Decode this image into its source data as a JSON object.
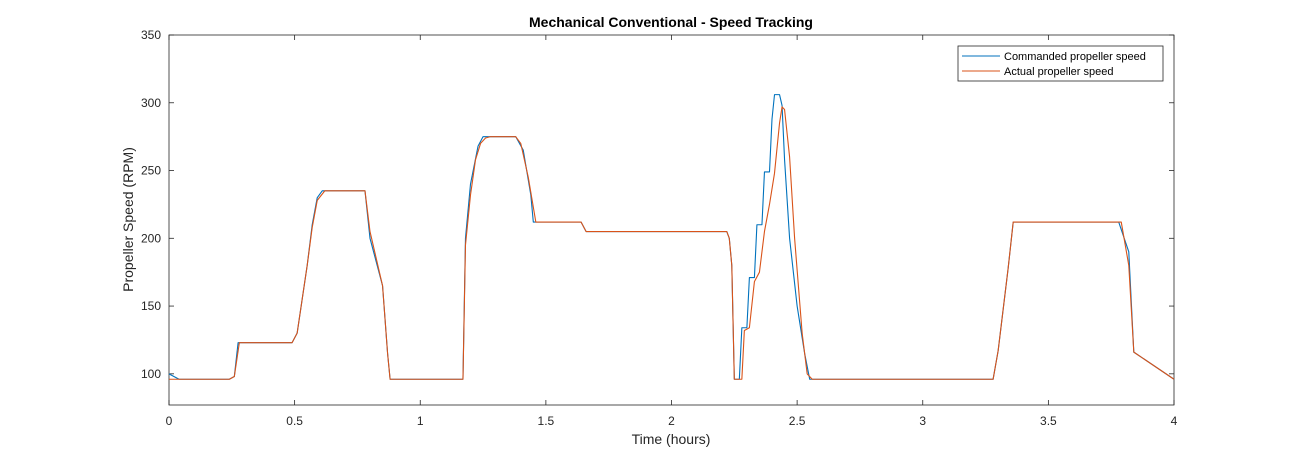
{
  "chart_data": {
    "type": "line",
    "title": "Mechanical Conventional - Speed Tracking",
    "xlabel": "Time (hours)",
    "ylabel": "Propeller Speed (RPM)",
    "xlim": [
      0,
      4
    ],
    "ylim": [
      77,
      350
    ],
    "xticks": [
      0,
      0.5,
      1,
      1.5,
      2,
      2.5,
      3,
      3.5,
      4
    ],
    "xtick_labels": [
      "0",
      "0.5",
      "1",
      "1.5",
      "2",
      "2.5",
      "3",
      "3.5",
      "4"
    ],
    "yticks": [
      100,
      150,
      200,
      250,
      300,
      350
    ],
    "ytick_labels": [
      "100",
      "150",
      "200",
      "250",
      "300",
      "350"
    ],
    "grid": false,
    "legend_position": "top-right",
    "series": [
      {
        "name": "Commanded propeller speed",
        "color": "#0072BD",
        "x": [
          0,
          0.04,
          0.24,
          0.26,
          0.275,
          0.49,
          0.51,
          0.55,
          0.57,
          0.59,
          0.61,
          0.63,
          0.78,
          0.8,
          0.85,
          0.87,
          0.88,
          1.17,
          1.18,
          1.2,
          1.23,
          1.25,
          1.38,
          1.41,
          1.44,
          1.45,
          1.64,
          1.66,
          2.22,
          2.23,
          2.24,
          2.25,
          2.27,
          2.28,
          2.3,
          2.31,
          2.33,
          2.34,
          2.36,
          2.37,
          2.39,
          2.4,
          2.41,
          2.42,
          2.43,
          2.44,
          2.45,
          2.47,
          2.5,
          2.53,
          2.55,
          2.56,
          3.28,
          3.3,
          3.34,
          3.36,
          3.77,
          3.78,
          3.82,
          3.84,
          4.0
        ],
        "y": [
          100,
          96,
          96,
          98,
          123,
          123,
          130,
          180,
          210,
          230,
          235,
          235,
          235,
          200,
          165,
          115,
          96,
          96,
          200,
          240,
          268,
          275,
          275,
          265,
          232,
          212,
          212,
          205,
          205,
          200,
          180,
          96,
          96,
          134,
          134,
          171,
          171,
          210,
          210,
          249,
          249,
          288,
          306,
          306,
          306,
          298,
          258,
          200,
          150,
          115,
          96,
          96,
          96,
          117,
          178,
          212,
          212,
          212,
          190,
          116,
          96
        ]
      },
      {
        "name": "Actual propeller speed",
        "color": "#D95319",
        "x": [
          0,
          0.24,
          0.26,
          0.28,
          0.49,
          0.51,
          0.55,
          0.57,
          0.59,
          0.62,
          0.78,
          0.8,
          0.85,
          0.87,
          0.88,
          1.17,
          1.18,
          1.2,
          1.22,
          1.24,
          1.26,
          1.28,
          1.38,
          1.4,
          1.43,
          1.46,
          1.64,
          1.66,
          2.22,
          2.23,
          2.24,
          2.25,
          2.28,
          2.29,
          2.31,
          2.33,
          2.35,
          2.37,
          2.39,
          2.41,
          2.43,
          2.44,
          2.45,
          2.47,
          2.49,
          2.52,
          2.54,
          2.56,
          3.28,
          3.3,
          3.34,
          3.36,
          3.77,
          3.79,
          3.82,
          3.84,
          4.0
        ],
        "y": [
          96,
          96,
          98,
          123,
          123,
          130,
          180,
          208,
          228,
          235,
          235,
          205,
          165,
          115,
          96,
          96,
          195,
          232,
          258,
          270,
          274,
          275,
          275,
          270,
          245,
          212,
          212,
          205,
          205,
          200,
          180,
          96,
          96,
          132,
          134,
          168,
          175,
          205,
          225,
          248,
          285,
          297,
          295,
          260,
          200,
          130,
          100,
          96,
          96,
          117,
          178,
          212,
          212,
          212,
          180,
          116,
          96
        ]
      }
    ]
  }
}
